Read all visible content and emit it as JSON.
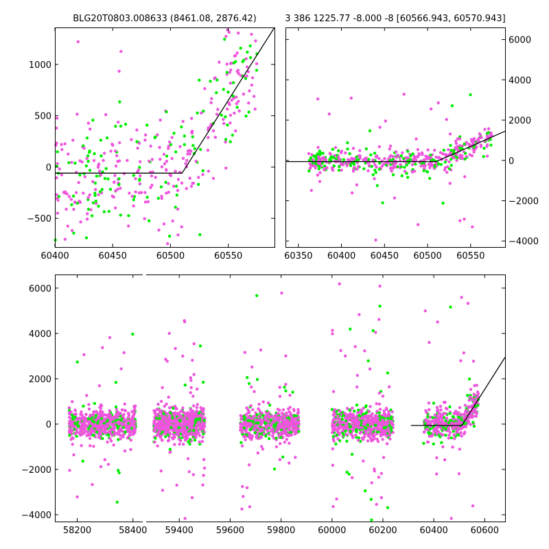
{
  "colors": {
    "band_green": "#00ee00",
    "band_pink": "#ee55dd",
    "model_line": "#000000"
  },
  "chart_data": [
    {
      "type": "scatter",
      "panel": "top-left-zoom",
      "title": "BLG20T0803.008633 (8461.08, 2876.42)",
      "xlabel": "",
      "ylabel": "",
      "xlim": [
        60400,
        60590
      ],
      "ylim": [
        -780,
        1360
      ],
      "xticks": [
        60400,
        60450,
        60500,
        60550
      ],
      "yticks": [
        -500,
        0,
        500,
        1000
      ],
      "ytick_side": "left",
      "model": {
        "x": [
          60400,
          60510,
          60590
        ],
        "y": [
          -60,
          -60,
          1360
        ]
      },
      "points_generated": {
        "seed": 11,
        "x_range": [
          60400,
          60575
        ],
        "n_green": 150,
        "n_pink": 260,
        "scatter_sd": 280,
        "outlier_spread": 1300
      }
    },
    {
      "type": "scatter",
      "panel": "top-right-zoom",
      "title": "3 386 1225.77 -8.000 -8 [60566.943, 60570.943]",
      "xlabel": "",
      "ylabel": "",
      "xlim": [
        60335,
        60590
      ],
      "ylim": [
        -4300,
        6600
      ],
      "xticks": [
        60350,
        60400,
        60450,
        60500,
        60550
      ],
      "yticks": [
        -4000,
        -2000,
        0,
        2000,
        4000,
        6000
      ],
      "ytick_side": "right",
      "model": {
        "x": [
          60335,
          60510,
          60590
        ],
        "y": [
          -60,
          -60,
          1450
        ]
      },
      "points_generated": {
        "seed": 23,
        "x_range": [
          60362,
          60575
        ],
        "n_green": 200,
        "n_pink": 330,
        "scatter_sd": 260,
        "outlier_spread": 2200
      }
    },
    {
      "type": "scatter",
      "panel": "bottom-full-lightcurve",
      "title": "",
      "xlabel": "",
      "ylabel": "",
      "ylim": [
        -4300,
        6600
      ],
      "xticks": [
        58200,
        58400,
        59400,
        59600,
        59800,
        60000,
        60200,
        60400,
        60600
      ],
      "yticks": [
        -4000,
        -2000,
        0,
        2000,
        4000,
        6000
      ],
      "ytick_side": "left",
      "broken_axis": true,
      "segments": [
        {
          "xlim": [
            58120,
            58440
          ],
          "xticks": [
            58200,
            58400
          ]
        },
        {
          "xlim": [
            59270,
            60680
          ],
          "xticks": [
            59400,
            59600,
            59800,
            60000,
            60200,
            60400,
            60600
          ]
        }
      ],
      "seasons": [
        {
          "x_range": [
            58170,
            58410
          ],
          "n_green": 120,
          "n_pink": 520
        },
        {
          "x_range": [
            59300,
            59500
          ],
          "n_green": 170,
          "n_pink": 640
        },
        {
          "x_range": [
            59640,
            59870
          ],
          "n_green": 160,
          "n_pink": 470
        },
        {
          "x_range": [
            60000,
            60240
          ],
          "n_green": 150,
          "n_pink": 520
        },
        {
          "x_range": [
            60360,
            60575
          ],
          "n_green": 130,
          "n_pink": 340
        }
      ],
      "model": {
        "x": [
          60310,
          60510,
          60680
        ],
        "y": [
          -60,
          -60,
          2950
        ]
      },
      "points_generated": {
        "seed": 37,
        "scatter_sd": 330,
        "outlier_spread": 2400
      }
    }
  ]
}
